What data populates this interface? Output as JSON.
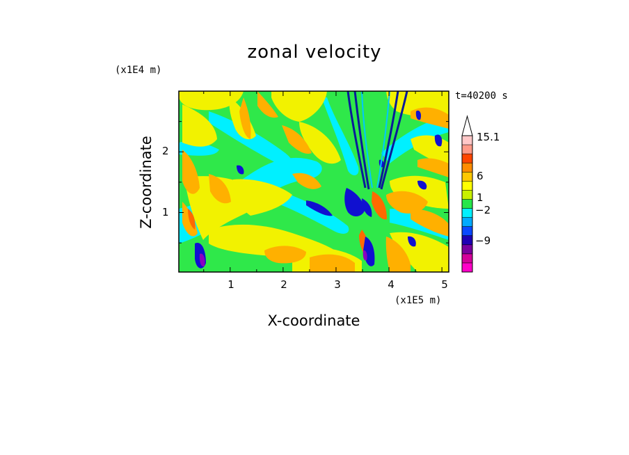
{
  "chart_data": {
    "type": "heatmap",
    "title": "zonal velocity",
    "xlabel": "X-coordinate",
    "ylabel": "Z-coordinate",
    "x_unit": "(x1E5 m)",
    "y_unit": "(x1E4 m)",
    "time_label": "t=40200 s",
    "xlim": [
      0.03,
      5.13
    ],
    "ylim": [
      0.02,
      3.0
    ],
    "x_ticks": [
      "1",
      "2",
      "3",
      "4",
      "5"
    ],
    "y_ticks": [
      "1",
      "2"
    ],
    "colorbar": {
      "levels": [
        -15,
        -12,
        -9,
        -6,
        -4,
        -2,
        -1,
        0,
        1,
        2,
        4,
        6,
        9,
        12,
        15.1
      ],
      "labels": [
        "15.1",
        "6",
        "1",
        "−2",
        "−9"
      ],
      "colors": [
        "#ff00c8",
        "#d4009a",
        "#7a009e",
        "#1e00b4",
        "#0a48ff",
        "#00aaff",
        "#00f0ff",
        "#26e64a",
        "#c8f000",
        "#ffff00",
        "#ffc800",
        "#ff8c00",
        "#ff4600",
        "#ff9a88",
        "#ffc8c8"
      ],
      "extend": "max"
    }
  },
  "colors": {
    "background": "#ffffff",
    "field_base": "#2fe84a",
    "frame": "#000000"
  }
}
